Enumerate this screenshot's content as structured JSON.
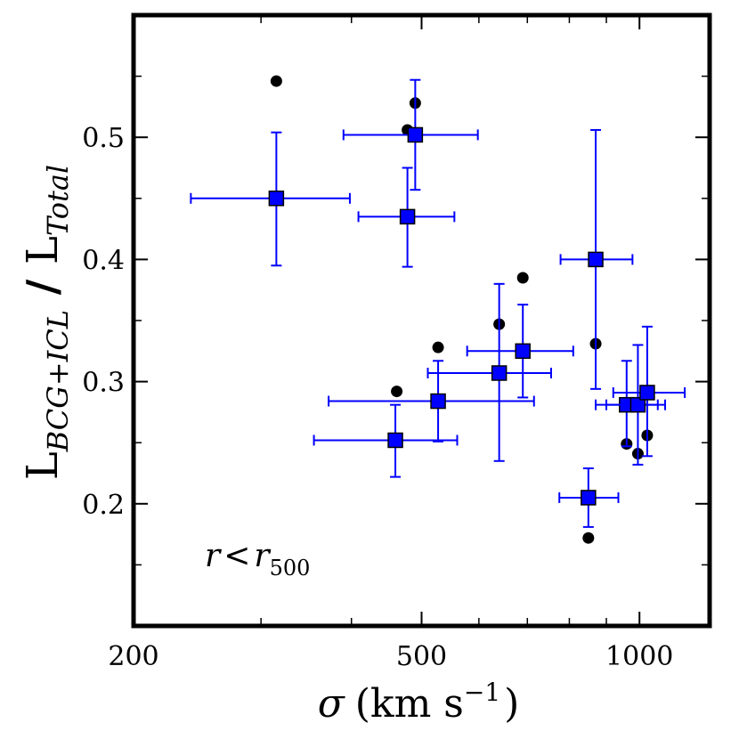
{
  "chart_data": {
    "type": "scatter",
    "xscale": "log",
    "xlim": [
      200,
      1250
    ],
    "ylim": [
      0.1,
      0.6
    ],
    "grid": false,
    "xticks_major": [
      200,
      500,
      1000
    ],
    "xtick_labels": [
      "200",
      "500",
      "1000"
    ],
    "xticks_minor": [
      300,
      400,
      600,
      700,
      800,
      900
    ],
    "yticks": [
      0.2,
      0.3,
      0.4,
      0.5
    ],
    "ytick_labels": [
      "0.2",
      "0.3",
      "0.4",
      "0.5"
    ],
    "yticks_minor": [
      0.15,
      0.25,
      0.35,
      0.45,
      0.55
    ],
    "xlabel": {
      "symbol": "σ",
      "text": "(km s",
      "sup": "−1",
      "close": ")"
    },
    "ylabel": {
      "main1": "L",
      "sub1": "BCG+ICL",
      "sep": " / ",
      "main2": "L",
      "sub2": "Total"
    },
    "annotation": {
      "var": "r",
      "op": "<",
      "var2": "r",
      "sub": "500"
    },
    "series": [
      {
        "marker": "circle",
        "color": "#000000",
        "points": [
          {
            "x": 315,
            "y": 0.546
          },
          {
            "x": 478,
            "y": 0.506
          },
          {
            "x": 490,
            "y": 0.528
          },
          {
            "x": 462,
            "y": 0.292
          },
          {
            "x": 527,
            "y": 0.328
          },
          {
            "x": 640,
            "y": 0.347
          },
          {
            "x": 690,
            "y": 0.385
          },
          {
            "x": 870,
            "y": 0.331
          },
          {
            "x": 850,
            "y": 0.172
          },
          {
            "x": 960,
            "y": 0.249
          },
          {
            "x": 995,
            "y": 0.241
          },
          {
            "x": 1025,
            "y": 0.256
          }
        ]
      },
      {
        "marker": "square",
        "color": "#0000ff",
        "points": [
          {
            "x": 315,
            "y": 0.45,
            "xlo": 240,
            "xhi": 398,
            "ylo": 0.395,
            "yhi": 0.504
          },
          {
            "x": 490,
            "y": 0.502,
            "xlo": 390,
            "xhi": 598,
            "ylo": 0.457,
            "yhi": 0.547
          },
          {
            "x": 478,
            "y": 0.435,
            "xlo": 409,
            "xhi": 555,
            "ylo": 0.394,
            "yhi": 0.475
          },
          {
            "x": 870,
            "y": 0.4,
            "xlo": 778,
            "xhi": 978,
            "ylo": 0.294,
            "yhi": 0.506
          },
          {
            "x": 460,
            "y": 0.252,
            "xlo": 355,
            "xhi": 560,
            "ylo": 0.222,
            "yhi": 0.281
          },
          {
            "x": 527,
            "y": 0.284,
            "xlo": 372,
            "xhi": 715,
            "ylo": 0.251,
            "yhi": 0.317
          },
          {
            "x": 640,
            "y": 0.307,
            "xlo": 510,
            "xhi": 755,
            "ylo": 0.235,
            "yhi": 0.38
          },
          {
            "x": 690,
            "y": 0.325,
            "xlo": 578,
            "xhi": 810,
            "ylo": 0.287,
            "yhi": 0.363
          },
          {
            "x": 850,
            "y": 0.205,
            "xlo": 775,
            "xhi": 935,
            "ylo": 0.181,
            "yhi": 0.229
          },
          {
            "x": 960,
            "y": 0.281,
            "xlo": 870,
            "xhi": 1060,
            "ylo": 0.247,
            "yhi": 0.317
          },
          {
            "x": 995,
            "y": 0.281,
            "xlo": 900,
            "xhi": 1085,
            "ylo": 0.232,
            "yhi": 0.33
          },
          {
            "x": 1025,
            "y": 0.291,
            "xlo": 920,
            "xhi": 1155,
            "ylo": 0.239,
            "yhi": 0.345
          }
        ]
      }
    ]
  }
}
